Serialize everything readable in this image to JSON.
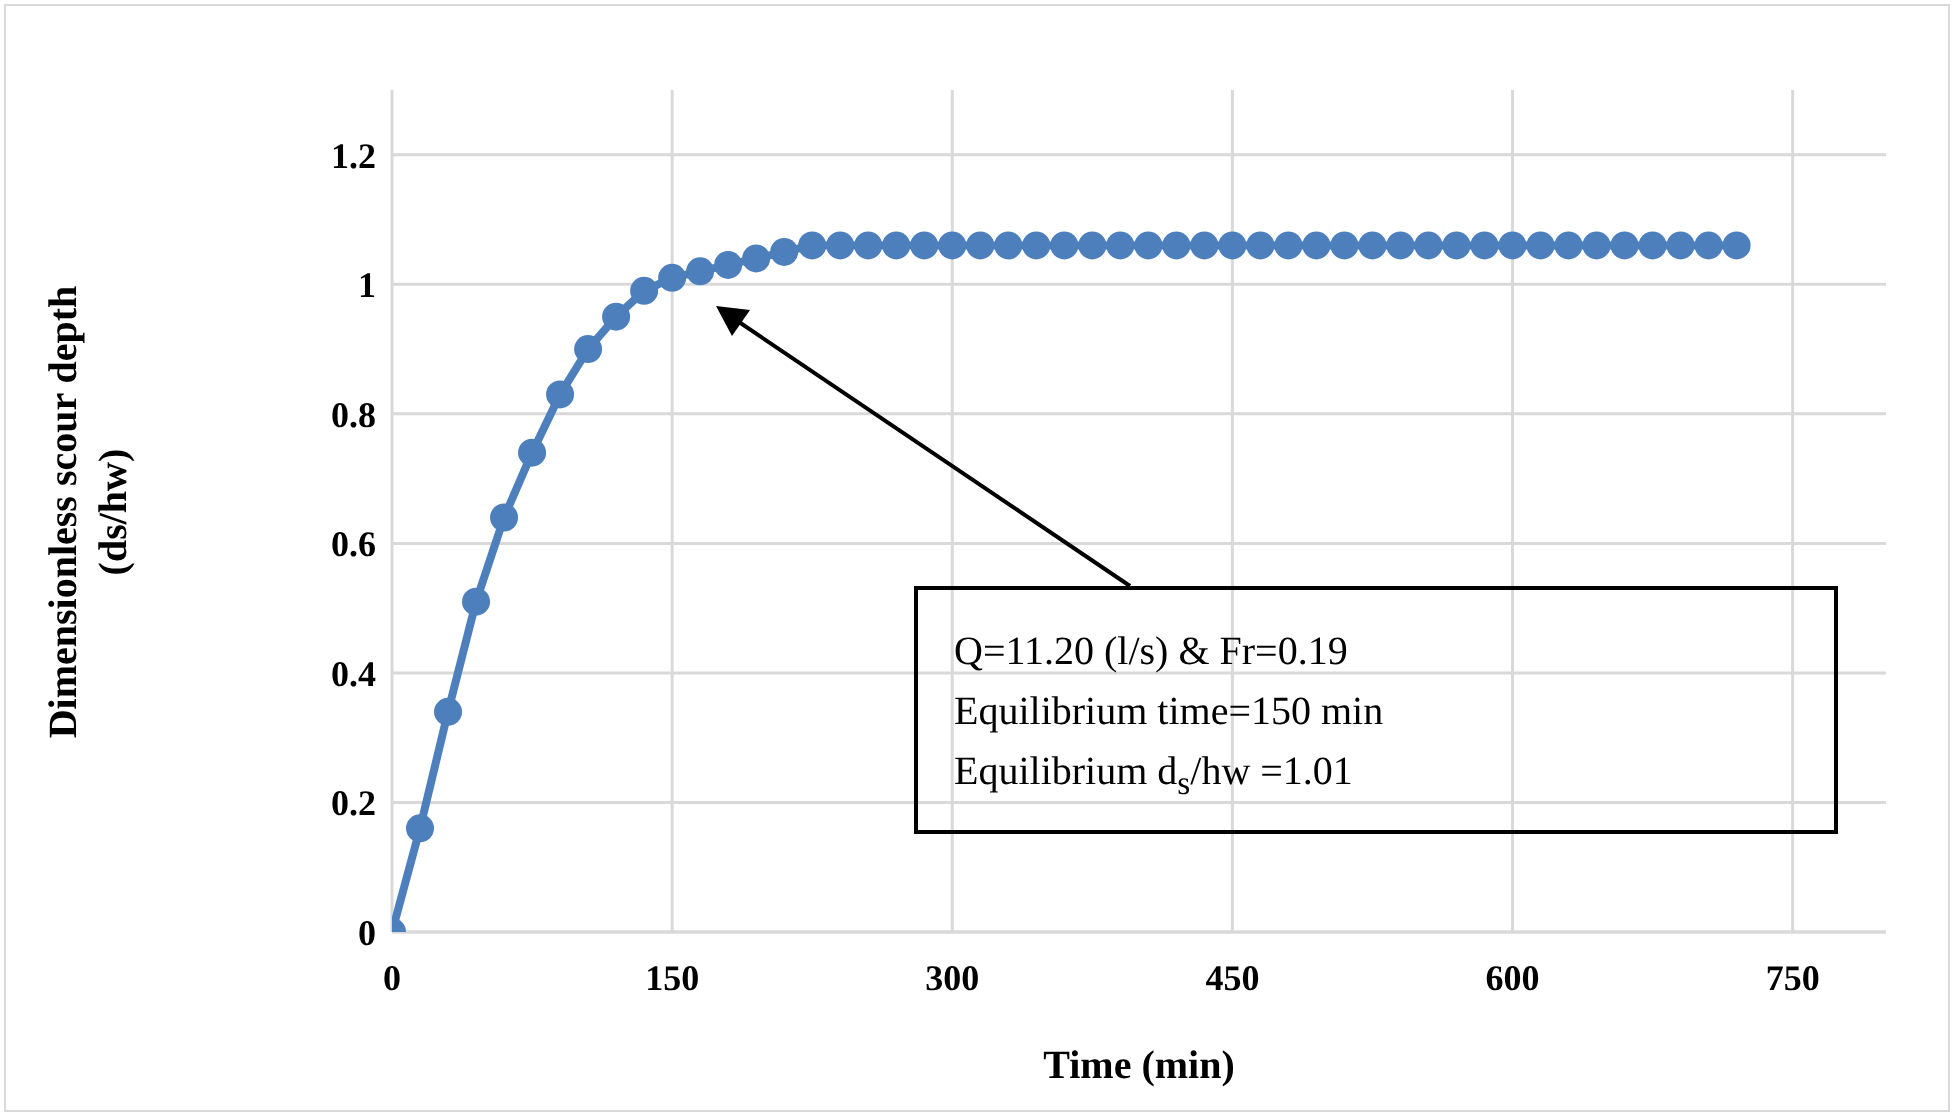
{
  "chart_data": {
    "type": "line",
    "xlabel": "Time (min)",
    "ylabel": "Dimensionless scour depth\n(ds/hw)",
    "x": [
      0,
      15,
      30,
      45,
      60,
      75,
      90,
      105,
      120,
      135,
      150,
      165,
      180,
      195,
      210,
      225,
      240,
      255,
      270,
      285,
      300,
      315,
      330,
      345,
      360,
      375,
      390,
      405,
      420,
      435,
      450,
      465,
      480,
      495,
      510,
      525,
      540,
      555,
      570,
      585,
      600,
      615,
      630,
      645,
      660,
      675,
      690,
      705,
      720
    ],
    "series": [
      {
        "color": "#4e7fbd",
        "values": [
          0,
          0.16,
          0.34,
          0.51,
          0.64,
          0.74,
          0.83,
          0.9,
          0.95,
          0.99,
          1.01,
          1.02,
          1.03,
          1.04,
          1.05,
          1.06,
          1.06,
          1.06,
          1.06,
          1.06,
          1.06,
          1.06,
          1.06,
          1.06,
          1.06,
          1.06,
          1.06,
          1.06,
          1.06,
          1.06,
          1.06,
          1.06,
          1.06,
          1.06,
          1.06,
          1.06,
          1.06,
          1.06,
          1.06,
          1.06,
          1.06,
          1.06,
          1.06,
          1.06,
          1.06,
          1.06,
          1.06,
          1.06,
          1.06
        ]
      }
    ],
    "xlim": [
      0,
      800
    ],
    "xticks": [
      0,
      150,
      300,
      450,
      600,
      750
    ],
    "ylim": [
      0,
      1.3
    ],
    "yticks": [
      0,
      0.2,
      0.4,
      0.6,
      0.8,
      1,
      1.2
    ],
    "grid": true,
    "marker": "circle",
    "line_style": "solid",
    "annotations": [
      "Q=11.20 (l/s) & Fr=0.19",
      "Equilibrium time=150 min",
      "Equilibrium d$_{s}$/hw =1.01"
    ]
  }
}
